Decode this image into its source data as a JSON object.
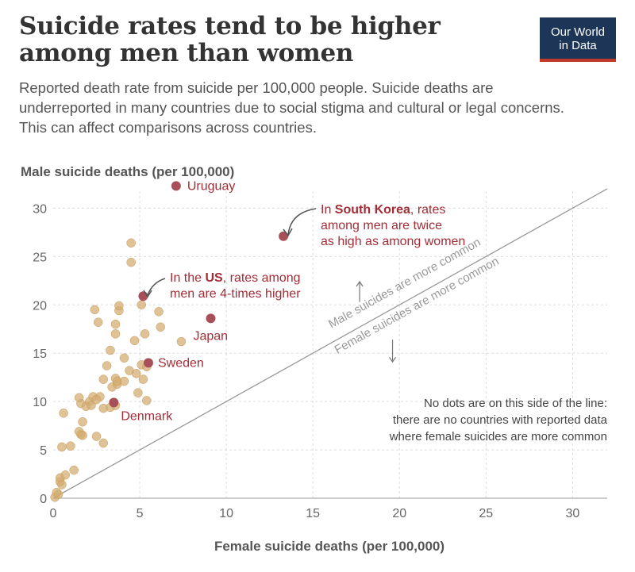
{
  "header": {
    "title": "Suicide rates tend to be higher among men than women",
    "subtitle": "Reported death rate from suicide per 100,000 people. Suicide deaths are underreported in many countries due to social stigma and cultural or legal concerns. This can affect comparisons across countries.",
    "logo_line1": "Our World",
    "logo_line2": "in Data"
  },
  "colors": {
    "dot": "#d4ad73",
    "highlight": "#a8505a",
    "annotation": "#a32d37",
    "grid": "#dddddd",
    "diagonal": "#999999"
  },
  "chart_data": {
    "type": "scatter",
    "xlabel": "Female suicide deaths (per 100,000)",
    "ylabel": "Male suicide deaths (per 100,000)",
    "xlim": [
      0,
      32
    ],
    "ylim": [
      0,
      32
    ],
    "xticks": [
      0,
      5,
      10,
      15,
      20,
      25,
      30
    ],
    "yticks": [
      0,
      5,
      10,
      15,
      20,
      25,
      30
    ],
    "diagonal_labels": {
      "above": "Male suicides are more common",
      "below": "Female suicides are more common"
    },
    "highlighted": [
      {
        "name": "Uruguay",
        "x": 7.1,
        "y": 32.3,
        "label_lines": [
          "Uruguay"
        ]
      },
      {
        "name": "South Korea",
        "x": 13.3,
        "y": 27.1,
        "label_lines": [
          [
            "In ",
            "South Korea",
            ", rates"
          ],
          "among men are twice",
          "as high as among women"
        ]
      },
      {
        "name": "US",
        "x": 5.2,
        "y": 20.9,
        "label_lines": [
          [
            "In the ",
            "US",
            ", rates among"
          ],
          "men are 4-times higher"
        ]
      },
      {
        "name": "Japan",
        "x": 9.1,
        "y": 18.6,
        "label_lines": [
          "Japan"
        ]
      },
      {
        "name": "Sweden",
        "x": 5.5,
        "y": 14.0,
        "label_lines": [
          "Sweden"
        ]
      },
      {
        "name": "Denmark",
        "x": 3.5,
        "y": 9.9,
        "label_lines": [
          "Denmark"
        ]
      }
    ],
    "note_lines": [
      "No dots are on this side of the line:",
      "there are no countries with reported data",
      "where female suicides are more common"
    ],
    "points": [
      [
        0.1,
        0.1
      ],
      [
        0.3,
        0.4
      ],
      [
        0.2,
        0.6
      ],
      [
        0.4,
        1.7
      ],
      [
        0.4,
        2.1
      ],
      [
        0.5,
        1.4
      ],
      [
        0.7,
        2.4
      ],
      [
        1.2,
        2.9
      ],
      [
        0.5,
        5.3
      ],
      [
        1.0,
        5.4
      ],
      [
        0.6,
        8.8
      ],
      [
        1.6,
        6.6
      ],
      [
        1.5,
        6.9
      ],
      [
        1.7,
        6.5
      ],
      [
        2.5,
        6.4
      ],
      [
        2.9,
        5.7
      ],
      [
        1.7,
        7.9
      ],
      [
        1.6,
        9.8
      ],
      [
        1.5,
        10.4
      ],
      [
        1.9,
        9.5
      ],
      [
        2.1,
        10.0
      ],
      [
        2.2,
        9.6
      ],
      [
        2.3,
        10.5
      ],
      [
        2.7,
        10.5
      ],
      [
        2.5,
        10.2
      ],
      [
        2.9,
        9.3
      ],
      [
        3.3,
        9.4
      ],
      [
        3.6,
        9.6
      ],
      [
        2.4,
        19.5
      ],
      [
        2.6,
        18.2
      ],
      [
        2.9,
        12.3
      ],
      [
        3.1,
        13.7
      ],
      [
        3.4,
        11.5
      ],
      [
        3.7,
        11.8
      ],
      [
        3.6,
        12.4
      ],
      [
        3.3,
        15.3
      ],
      [
        3.6,
        17.0
      ],
      [
        3.6,
        18.0
      ],
      [
        3.8,
        19.4
      ],
      [
        3.8,
        19.9
      ],
      [
        3.7,
        12.1
      ],
      [
        4.1,
        12.1
      ],
      [
        4.1,
        14.5
      ],
      [
        4.4,
        13.2
      ],
      [
        4.5,
        26.4
      ],
      [
        4.5,
        24.4
      ],
      [
        4.7,
        16.3
      ],
      [
        4.8,
        12.9
      ],
      [
        4.9,
        10.9
      ],
      [
        5.1,
        20.0
      ],
      [
        5.1,
        13.8
      ],
      [
        5.2,
        12.3
      ],
      [
        5.4,
        10.1
      ],
      [
        5.4,
        13.6
      ],
      [
        5.3,
        17.0
      ],
      [
        6.1,
        19.3
      ],
      [
        6.2,
        17.7
      ],
      [
        7.4,
        16.2
      ]
    ]
  }
}
